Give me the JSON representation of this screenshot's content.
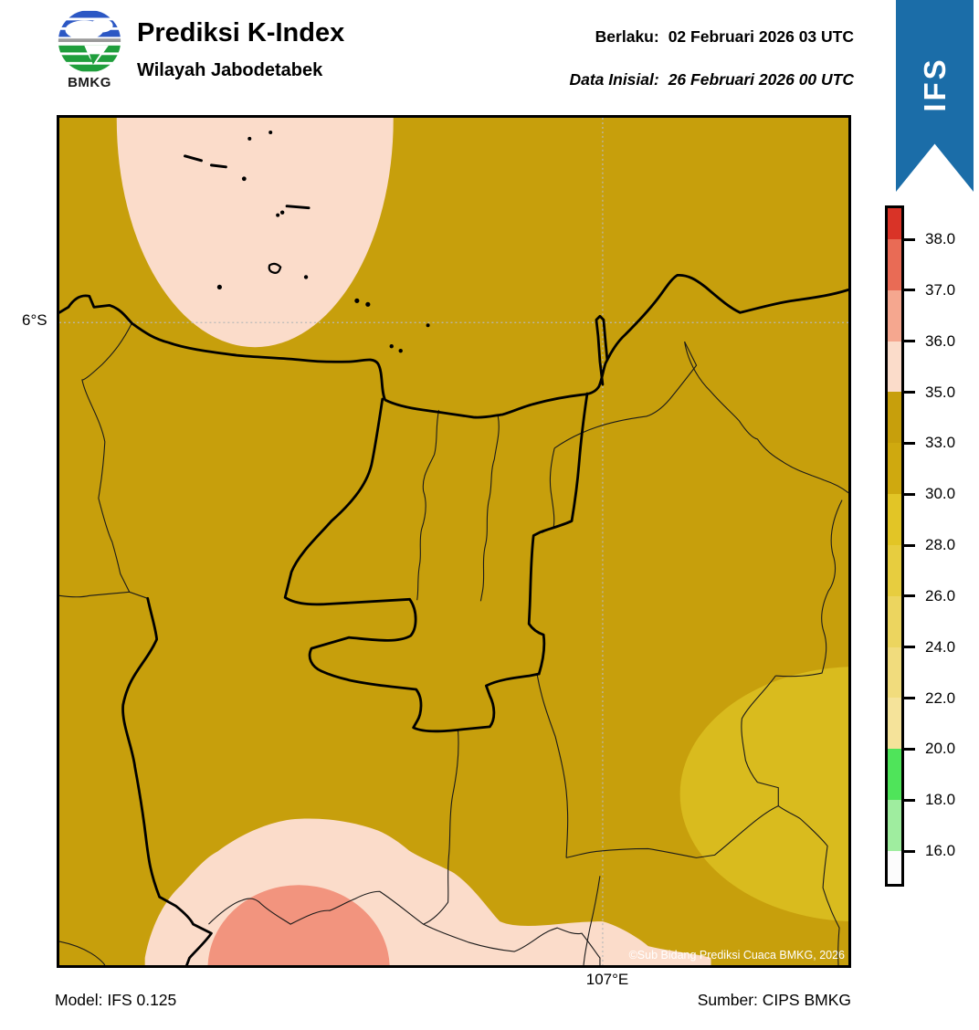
{
  "header": {
    "logo_text": "BMKG",
    "title": "Prediksi K-Index",
    "subtitle": "Wilayah Jabodetabek",
    "valid_label": "Berlaku:",
    "valid_value": "02 Februari 2026 03 UTC",
    "init_label": "Data Inisial:",
    "init_value": "26 Februari 2026 00 UTC",
    "ribbon_label": "IFS"
  },
  "map": {
    "lat_tick_label": "6°S",
    "lon_tick_label": "107°E",
    "copyright": "©Sub Bidang Prediksi Cuaca BMKG, 2026"
  },
  "footer": {
    "model": "Model: IFS 0.125",
    "source": "Sumber: CIPS BMKG"
  },
  "colorbar": {
    "tick_labels": [
      "38.0",
      "37.0",
      "36.0",
      "35.0",
      "33.0",
      "30.0",
      "28.0",
      "26.0",
      "24.0",
      "22.0",
      "20.0",
      "18.0",
      "16.0"
    ],
    "segment_colors": [
      "#D93327",
      "#E96B55",
      "#F5A78F",
      "#FBDCCA",
      "#C79F0C",
      "#CFA90F",
      "#E2C526",
      "#E7CD3F",
      "#ECD55F",
      "#F1DC7D",
      "#F5E39A",
      "#4FE45A",
      "#9FED9F",
      "#FCFCFC"
    ]
  },
  "colors": {
    "mustard": "#C79F0C",
    "gold": "#D9BB1E",
    "pink": "#FBDCCA",
    "salmon": "#F2947E",
    "ribbon": "#1B6DA8",
    "grid": "#B9B9B9",
    "logo_blue": "#2B57C4",
    "logo_green": "#1F9E3C"
  },
  "chart_data": {
    "type": "heatmap",
    "title": "Prediksi K-Index",
    "region": "Wilayah Jabodetabek",
    "scale_name": "K-Index",
    "scale_ticks": [
      38.0,
      37.0,
      36.0,
      35.0,
      33.0,
      30.0,
      28.0,
      26.0,
      24.0,
      22.0,
      20.0,
      18.0,
      16.0
    ],
    "map_values": {
      "background_class": "33-35",
      "top_left_blob_class": "35-36",
      "bottom_center_blob_class": "35-36",
      "bottom_center_core_class": "36-37",
      "bottom_right_blob_class": "30-33"
    },
    "gridlines": {
      "lat": "6°S",
      "lon": "107°E"
    }
  }
}
